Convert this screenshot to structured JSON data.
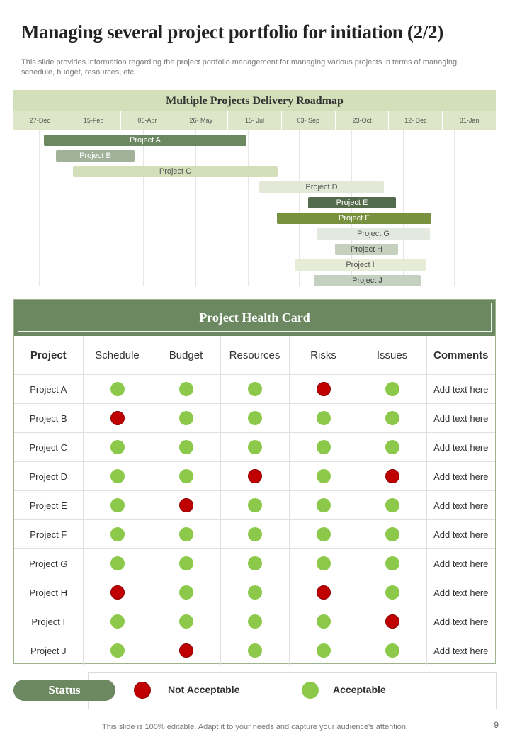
{
  "title": "Managing several project portfolio for initiation (2/2)",
  "subtitle": "This slide provides information regarding the project portfolio management for managing various projects in terms of managing schedule, budget, resources, etc.",
  "roadmap": {
    "title": "Multiple Projects Delivery Roadmap",
    "dates": [
      "27-Dec",
      "15-Feb",
      "06-Apr",
      "26- May",
      "15- Jul",
      "03- Sep",
      "23-Oct",
      "12- Dec",
      "31-Jan"
    ],
    "projects": [
      {
        "label": "Project A",
        "color": "#6b8860",
        "text_color": "#ffffff"
      },
      {
        "label": "Project B",
        "color": "#a2b29a",
        "text_color": "#ffffff"
      },
      {
        "label": "Project C",
        "color": "#d3dfb9",
        "text_color": "#555555"
      },
      {
        "label": "Project D",
        "color": "#e3e9d6",
        "text_color": "#555555"
      },
      {
        "label": "Project E",
        "color": "#536b4a",
        "text_color": "#ffffff"
      },
      {
        "label": "Project F",
        "color": "#78913f",
        "text_color": "#ffffff"
      },
      {
        "label": "Project G",
        "color": "#e3e9df",
        "text_color": "#555555"
      },
      {
        "label": "Project H",
        "color": "#c5d0bf",
        "text_color": "#444444"
      },
      {
        "label": "Project I",
        "color": "#e6ecd6",
        "text_color": "#555555"
      },
      {
        "label": "Project J",
        "color": "#c4d0c0",
        "text_color": "#444444"
      }
    ]
  },
  "health_card": {
    "title": "Project Health Card",
    "columns": [
      "Project",
      "Schedule",
      "Budget",
      "Resources",
      "Risks",
      "Issues",
      "Comments"
    ],
    "rows": [
      {
        "project": "Project A",
        "status": [
          "green",
          "green",
          "green",
          "red",
          "green"
        ],
        "comment": "Add text here"
      },
      {
        "project": "Project B",
        "status": [
          "red",
          "green",
          "green",
          "green",
          "green"
        ],
        "comment": "Add text here"
      },
      {
        "project": "Project C",
        "status": [
          "green",
          "green",
          "green",
          "green",
          "green"
        ],
        "comment": "Add text here"
      },
      {
        "project": "Project D",
        "status": [
          "green",
          "green",
          "red",
          "green",
          "red"
        ],
        "comment": "Add text here"
      },
      {
        "project": "Project E",
        "status": [
          "green",
          "red",
          "green",
          "green",
          "green"
        ],
        "comment": "Add text here"
      },
      {
        "project": "Project F",
        "status": [
          "green",
          "green",
          "green",
          "green",
          "green"
        ],
        "comment": "Add text here"
      },
      {
        "project": "Project G",
        "status": [
          "green",
          "green",
          "green",
          "green",
          "green"
        ],
        "comment": "Add text here"
      },
      {
        "project": "Project H",
        "status": [
          "red",
          "green",
          "green",
          "red",
          "green"
        ],
        "comment": "Add text here"
      },
      {
        "project": "Project I",
        "status": [
          "green",
          "green",
          "green",
          "green",
          "red"
        ],
        "comment": "Add text here"
      },
      {
        "project": "Project J",
        "status": [
          "green",
          "red",
          "green",
          "green",
          "green"
        ],
        "comment": "Add text here"
      }
    ]
  },
  "status": {
    "label": "Status",
    "not_acceptable": "Not Acceptable",
    "acceptable": "Acceptable",
    "red_color": "#c00000",
    "green_color": "#8cc94a"
  },
  "footer": "This slide is 100% editable. Adapt it to your needs and capture your audience's attention.",
  "page_number": "9"
}
